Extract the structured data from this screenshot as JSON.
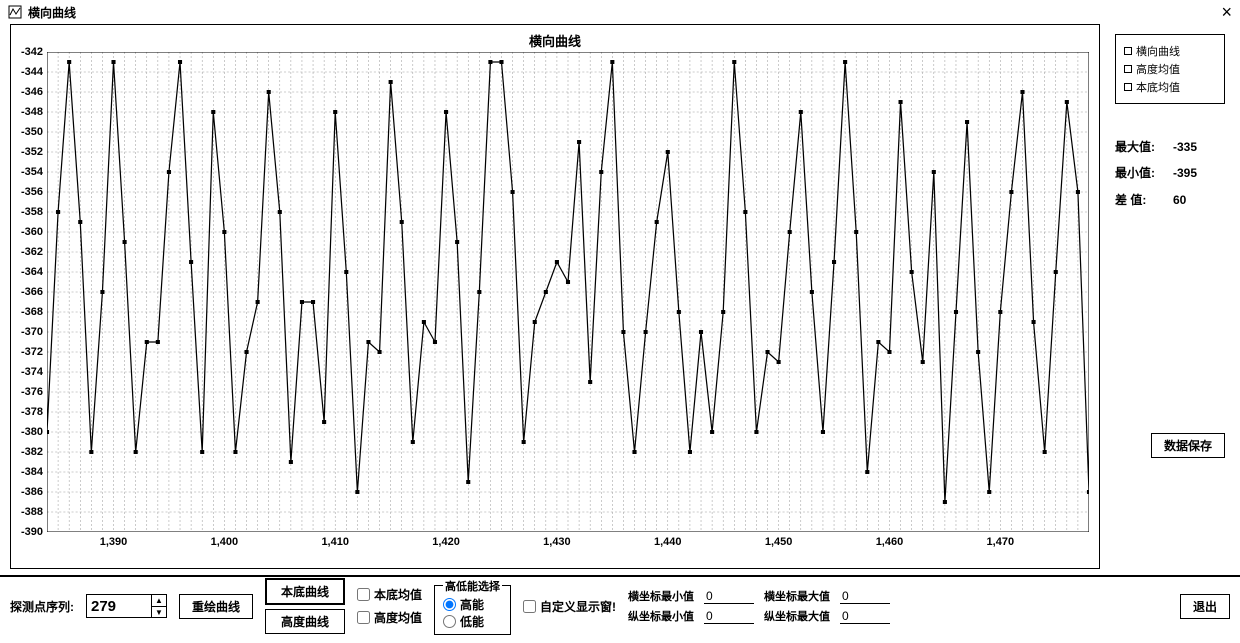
{
  "window": {
    "title": "横向曲线",
    "close": "×"
  },
  "chart": {
    "type": "line",
    "title": "横向曲线",
    "background_color": "#ffffff",
    "grid_color": "#999999",
    "line_color": "#000000",
    "marker_color": "#000000",
    "marker_size": 2,
    "line_width": 1.2,
    "xlim": [
      1384,
      1478
    ],
    "ylim": [
      -390,
      -342
    ],
    "ytick_step": 2,
    "xtick_step": 10,
    "xticks": [
      "1,390",
      "1,400",
      "1,410",
      "1,420",
      "1,430",
      "1,440",
      "1,450",
      "1,460",
      "1,470"
    ],
    "yticks": [
      "-344",
      "-346",
      "-348",
      "-350",
      "-352",
      "-354",
      "-356",
      "-358",
      "-360",
      "-362",
      "-364",
      "-366",
      "-368",
      "-370",
      "-372",
      "-374",
      "-376",
      "-378",
      "-380",
      "-382",
      "-384",
      "-386",
      "-388",
      "-390"
    ],
    "data": [
      [
        1384,
        -380
      ],
      [
        1385,
        -358
      ],
      [
        1386,
        -343
      ],
      [
        1387,
        -359
      ],
      [
        1388,
        -382
      ],
      [
        1389,
        -366
      ],
      [
        1390,
        -343
      ],
      [
        1391,
        -361
      ],
      [
        1392,
        -382
      ],
      [
        1393,
        -371
      ],
      [
        1394,
        -371
      ],
      [
        1395,
        -354
      ],
      [
        1396,
        -343
      ],
      [
        1397,
        -363
      ],
      [
        1398,
        -382
      ],
      [
        1399,
        -348
      ],
      [
        1400,
        -360
      ],
      [
        1401,
        -382
      ],
      [
        1402,
        -372
      ],
      [
        1403,
        -367
      ],
      [
        1404,
        -346
      ],
      [
        1405,
        -358
      ],
      [
        1406,
        -383
      ],
      [
        1407,
        -367
      ],
      [
        1408,
        -367
      ],
      [
        1409,
        -379
      ],
      [
        1410,
        -348
      ],
      [
        1411,
        -364
      ],
      [
        1412,
        -386
      ],
      [
        1413,
        -371
      ],
      [
        1414,
        -372
      ],
      [
        1415,
        -345
      ],
      [
        1416,
        -359
      ],
      [
        1417,
        -381
      ],
      [
        1418,
        -369
      ],
      [
        1419,
        -371
      ],
      [
        1420,
        -348
      ],
      [
        1421,
        -361
      ],
      [
        1422,
        -385
      ],
      [
        1423,
        -366
      ],
      [
        1424,
        -343
      ],
      [
        1425,
        -343
      ],
      [
        1426,
        -356
      ],
      [
        1427,
        -381
      ],
      [
        1428,
        -369
      ],
      [
        1429,
        -366
      ],
      [
        1430,
        -363
      ],
      [
        1431,
        -365
      ],
      [
        1432,
        -351
      ],
      [
        1433,
        -375
      ],
      [
        1434,
        -354
      ],
      [
        1435,
        -343
      ],
      [
        1436,
        -370
      ],
      [
        1437,
        -382
      ],
      [
        1438,
        -370
      ],
      [
        1439,
        -359
      ],
      [
        1440,
        -352
      ],
      [
        1441,
        -368
      ],
      [
        1442,
        -382
      ],
      [
        1443,
        -370
      ],
      [
        1444,
        -380
      ],
      [
        1445,
        -368
      ],
      [
        1446,
        -343
      ],
      [
        1447,
        -358
      ],
      [
        1448,
        -380
      ],
      [
        1449,
        -372
      ],
      [
        1450,
        -373
      ],
      [
        1451,
        -360
      ],
      [
        1452,
        -348
      ],
      [
        1453,
        -366
      ],
      [
        1454,
        -380
      ],
      [
        1455,
        -363
      ],
      [
        1456,
        -343
      ],
      [
        1457,
        -360
      ],
      [
        1458,
        -384
      ],
      [
        1459,
        -371
      ],
      [
        1460,
        -372
      ],
      [
        1461,
        -347
      ],
      [
        1462,
        -364
      ],
      [
        1463,
        -373
      ],
      [
        1464,
        -354
      ],
      [
        1465,
        -387
      ],
      [
        1466,
        -368
      ],
      [
        1467,
        -349
      ],
      [
        1468,
        -372
      ],
      [
        1469,
        -386
      ],
      [
        1470,
        -368
      ],
      [
        1471,
        -356
      ],
      [
        1472,
        -346
      ],
      [
        1473,
        -369
      ],
      [
        1474,
        -382
      ],
      [
        1475,
        -364
      ],
      [
        1476,
        -347
      ],
      [
        1477,
        -356
      ],
      [
        1478,
        -386
      ]
    ]
  },
  "legend": {
    "items": [
      "横向曲线",
      "高度均值",
      "本底均值"
    ]
  },
  "stats": {
    "max_label": "最大值:",
    "max_value": "-335",
    "min_label": "最小值:",
    "min_value": "-395",
    "range_label": "差 值:",
    "range_value": "60"
  },
  "buttons": {
    "data_save": "数据保存",
    "rebuild_curve": "重绘曲线",
    "base_curve": "本底曲线",
    "height_curve": "高度曲线",
    "exit": "退出"
  },
  "controls": {
    "point_label": "探测点序列:",
    "point_value": "279",
    "base_avg": "本底均值",
    "height_avg": "高度均值",
    "hl_group": "高低能选择",
    "hl_hi": "高能",
    "hl_lo": "低能",
    "custom_cb": "自定义显示窗!",
    "xmin_lbl": "横坐标最小值",
    "xmax_lbl": "横坐标最大值",
    "ymin_lbl": "纵坐标最小值",
    "ymax_lbl": "纵坐标最大值",
    "xmin": "0",
    "xmax": "0",
    "ymin": "0",
    "ymax": "0"
  }
}
